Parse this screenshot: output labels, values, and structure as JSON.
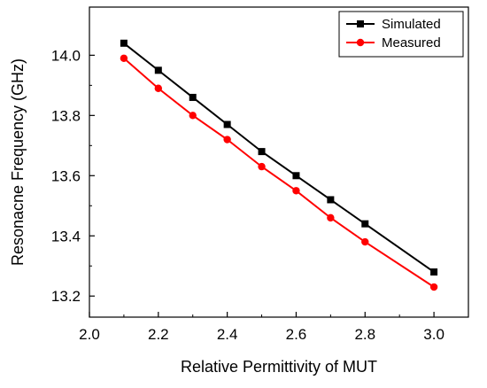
{
  "chart_data": {
    "type": "line",
    "xlabel": "Relative Permittivity of MUT",
    "ylabel": "Resonacne Frequency (GHz)",
    "xlim": [
      2.0,
      3.1
    ],
    "ylim": [
      13.13,
      14.16
    ],
    "xticks": [
      2.0,
      2.2,
      2.4,
      2.6,
      2.8,
      3.0
    ],
    "xtick_labels": [
      "2.0",
      "2.2",
      "2.4",
      "2.6",
      "2.8",
      "3.0"
    ],
    "yticks": [
      13.2,
      13.4,
      13.6,
      13.8,
      14.0
    ],
    "ytick_labels": [
      "13.2",
      "13.4",
      "13.6",
      "13.8",
      "14.0"
    ],
    "grid": false,
    "legend_position": "top-right",
    "series": [
      {
        "name": "Simulated",
        "color": "#000000",
        "marker": "square",
        "x": [
          2.1,
          2.2,
          2.3,
          2.4,
          2.5,
          2.6,
          2.7,
          2.8,
          3.0
        ],
        "y": [
          14.04,
          13.95,
          13.86,
          13.77,
          13.68,
          13.6,
          13.52,
          13.44,
          13.28
        ]
      },
      {
        "name": "Measured",
        "color": "#ff0000",
        "marker": "circle",
        "x": [
          2.1,
          2.2,
          2.3,
          2.4,
          2.5,
          2.6,
          2.7,
          2.8,
          3.0
        ],
        "y": [
          13.99,
          13.89,
          13.8,
          13.72,
          13.63,
          13.55,
          13.46,
          13.38,
          13.23
        ]
      }
    ]
  }
}
